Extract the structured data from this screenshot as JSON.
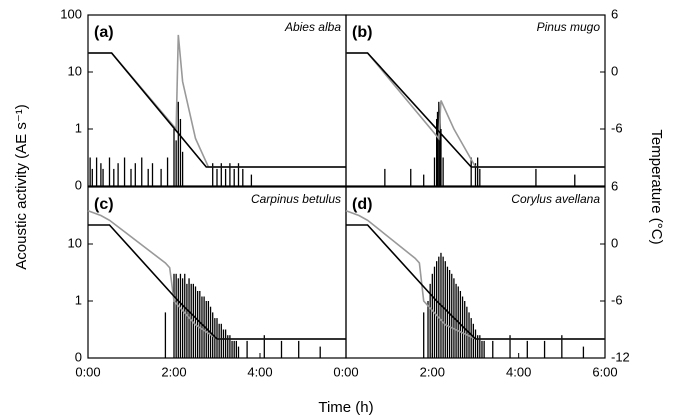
{
  "figure": {
    "xlabel": "Time (h)",
    "ylabel": "Acoustic activity (AE s⁻¹)",
    "y2label": "Temperature (°C)"
  },
  "chart_data": [
    {
      "type": "bar",
      "label": "(a)",
      "species": "Abies alba",
      "yscale": "symlog",
      "xlim": [
        0,
        6
      ],
      "ylim": [
        0,
        100
      ],
      "y2lim": [
        -12,
        6
      ],
      "yticks": [
        0,
        1,
        10,
        100
      ],
      "bars": {
        "color": "#000",
        "x": [
          0.05,
          0.1,
          0.2,
          0.3,
          0.35,
          0.5,
          0.6,
          0.7,
          0.85,
          1.0,
          1.1,
          1.25,
          1.4,
          1.5,
          1.7,
          1.85,
          2.0,
          2.05,
          2.1,
          2.15,
          2.2,
          2.9,
          3.0,
          3.1,
          3.2,
          3.3,
          3.4,
          3.5,
          3.6,
          3.8
        ],
        "values": [
          0.5,
          0.3,
          0.5,
          0.4,
          0.3,
          0.5,
          0.3,
          0.4,
          0.5,
          0.3,
          0.4,
          0.5,
          0.3,
          0.4,
          0.3,
          0.5,
          1,
          0.8,
          3,
          1.5,
          0.6,
          0.4,
          0.3,
          0.4,
          0.3,
          0.4,
          0.3,
          0.4,
          0.3,
          0.2
        ]
      },
      "lines": [
        {
          "color": "#999",
          "axis": "y2",
          "x": [
            0,
            0.55,
            2.05,
            2.1,
            2.2,
            2.5,
            2.8,
            6
          ],
          "values": [
            2,
            2,
            -6,
            3.9,
            -1,
            -7,
            -10,
            -10
          ]
        },
        {
          "color": "#000",
          "axis": "y2",
          "x": [
            0,
            0.55,
            2.75,
            6
          ],
          "values": [
            2,
            2,
            -10,
            -10
          ]
        }
      ]
    },
    {
      "type": "bar",
      "label": "(b)",
      "species": "Pinus mugo",
      "yscale": "symlog",
      "xlim": [
        0,
        6
      ],
      "ylim": [
        0,
        100
      ],
      "y2lim": [
        -12,
        6
      ],
      "y2ticks": [
        6,
        0,
        -6
      ],
      "bars": {
        "color": "#000",
        "x": [
          0.9,
          1.5,
          1.8,
          2.05,
          2.1,
          2.12,
          2.15,
          2.18,
          2.2,
          2.25,
          2.9,
          3.0,
          3.05,
          3.1,
          4.4,
          5.3
        ],
        "values": [
          0.3,
          0.3,
          0.2,
          0.5,
          1.5,
          2,
          3,
          2,
          1,
          0.5,
          0.5,
          0.4,
          0.5,
          0.3,
          0.3,
          0.2
        ]
      },
      "lines": [
        {
          "color": "#999",
          "axis": "y2",
          "x": [
            0,
            0.5,
            2.15,
            2.2,
            2.5,
            3.0,
            6
          ],
          "values": [
            2,
            2,
            -7,
            -3,
            -6,
            -10,
            -10
          ]
        },
        {
          "color": "#000",
          "axis": "y2",
          "x": [
            0,
            0.5,
            2.9,
            6
          ],
          "values": [
            2,
            2,
            -10,
            -10
          ]
        }
      ]
    },
    {
      "type": "bar",
      "label": "(c)",
      "species": "Carpinus betulus",
      "yscale": "symlog",
      "xlim": [
        0,
        6
      ],
      "ylim": [
        0,
        100
      ],
      "y2lim": [
        -12,
        6
      ],
      "yticks": [
        0,
        1,
        10
      ],
      "xticks": [
        {
          "value": 0,
          "label": "0:00"
        },
        {
          "value": 2,
          "label": "2:00"
        },
        {
          "value": 4,
          "label": "4:00"
        }
      ],
      "bars": {
        "color": "#000",
        "x": [
          1.8,
          2.0,
          2.05,
          2.1,
          2.15,
          2.2,
          2.25,
          2.3,
          2.35,
          2.4,
          2.45,
          2.5,
          2.55,
          2.6,
          2.65,
          2.7,
          2.75,
          2.8,
          2.85,
          2.9,
          2.95,
          3.0,
          3.05,
          3.1,
          3.15,
          3.2,
          3.25,
          3.3,
          3.35,
          3.4,
          3.45,
          3.5,
          3.7,
          4.1,
          4.5,
          4.9,
          5.4
        ],
        "values": [
          0.8,
          3,
          3,
          2.5,
          3,
          2.5,
          3,
          2,
          2.5,
          2,
          2,
          1.8,
          1.5,
          1.5,
          1.2,
          1.2,
          1,
          1,
          0.9,
          0.8,
          0.7,
          0.7,
          0.6,
          0.6,
          0.5,
          0.5,
          0.4,
          0.4,
          0.3,
          0.3,
          0.3,
          0.2,
          0.3,
          0.4,
          0.3,
          0.3,
          0.2
        ]
      },
      "lines": [
        {
          "color": "#999",
          "axis": "y2",
          "x": [
            0,
            0.3,
            0.5,
            1.8,
            1.9,
            2.0,
            2.5,
            3.0,
            6
          ],
          "values": [
            3.5,
            3,
            2.5,
            -2,
            -2.5,
            -6,
            -8.5,
            -10,
            -10
          ]
        },
        {
          "color": "#000",
          "axis": "y2",
          "x": [
            0,
            0.5,
            2.0,
            2.1,
            3.0,
            6
          ],
          "values": [
            2,
            2,
            -5.5,
            -6,
            -10,
            -10
          ]
        }
      ]
    },
    {
      "type": "bar",
      "label": "(d)",
      "species": "Corylus avellana",
      "yscale": "symlog",
      "xlim": [
        0,
        6
      ],
      "ylim": [
        0,
        100
      ],
      "y2lim": [
        -12,
        6
      ],
      "y2ticks": [
        6,
        0,
        -6,
        -12
      ],
      "xticks": [
        {
          "value": 0,
          "label": "0:00"
        },
        {
          "value": 2,
          "label": "2:00"
        },
        {
          "value": 4,
          "label": "4:00"
        },
        {
          "value": 6,
          "label": "6:00"
        }
      ],
      "bars": {
        "color": "#000",
        "x": [
          1.8,
          1.9,
          1.95,
          2.0,
          2.05,
          2.1,
          2.15,
          2.2,
          2.25,
          2.3,
          2.35,
          2.4,
          2.45,
          2.5,
          2.55,
          2.6,
          2.65,
          2.7,
          2.75,
          2.8,
          2.85,
          2.9,
          2.95,
          3.0,
          3.05,
          3.1,
          3.15,
          3.2,
          3.4,
          3.8,
          4.2,
          4.6,
          5.0,
          5.5
        ],
        "values": [
          0.8,
          1,
          2,
          3,
          4,
          5,
          6,
          7,
          6,
          5,
          4,
          3.5,
          3,
          2.5,
          2,
          1.8,
          1.5,
          1.2,
          1,
          0.9,
          0.8,
          0.7,
          0.6,
          0.5,
          0.4,
          0.4,
          0.3,
          0.3,
          0.3,
          0.4,
          0.3,
          0.3,
          0.4,
          0.2
        ]
      },
      "lines": [
        {
          "color": "#999",
          "axis": "y2",
          "x": [
            0,
            0.3,
            0.5,
            1.6,
            1.7,
            1.8,
            2.3,
            3.0,
            6
          ],
          "values": [
            3.5,
            3,
            2.5,
            -1.5,
            -2,
            -6,
            -8.5,
            -10,
            -10
          ]
        },
        {
          "color": "#000",
          "axis": "y2",
          "x": [
            0,
            0.5,
            2.0,
            2.1,
            3.0,
            6
          ],
          "values": [
            2,
            2,
            -5.5,
            -6,
            -10,
            -10
          ]
        }
      ]
    }
  ]
}
